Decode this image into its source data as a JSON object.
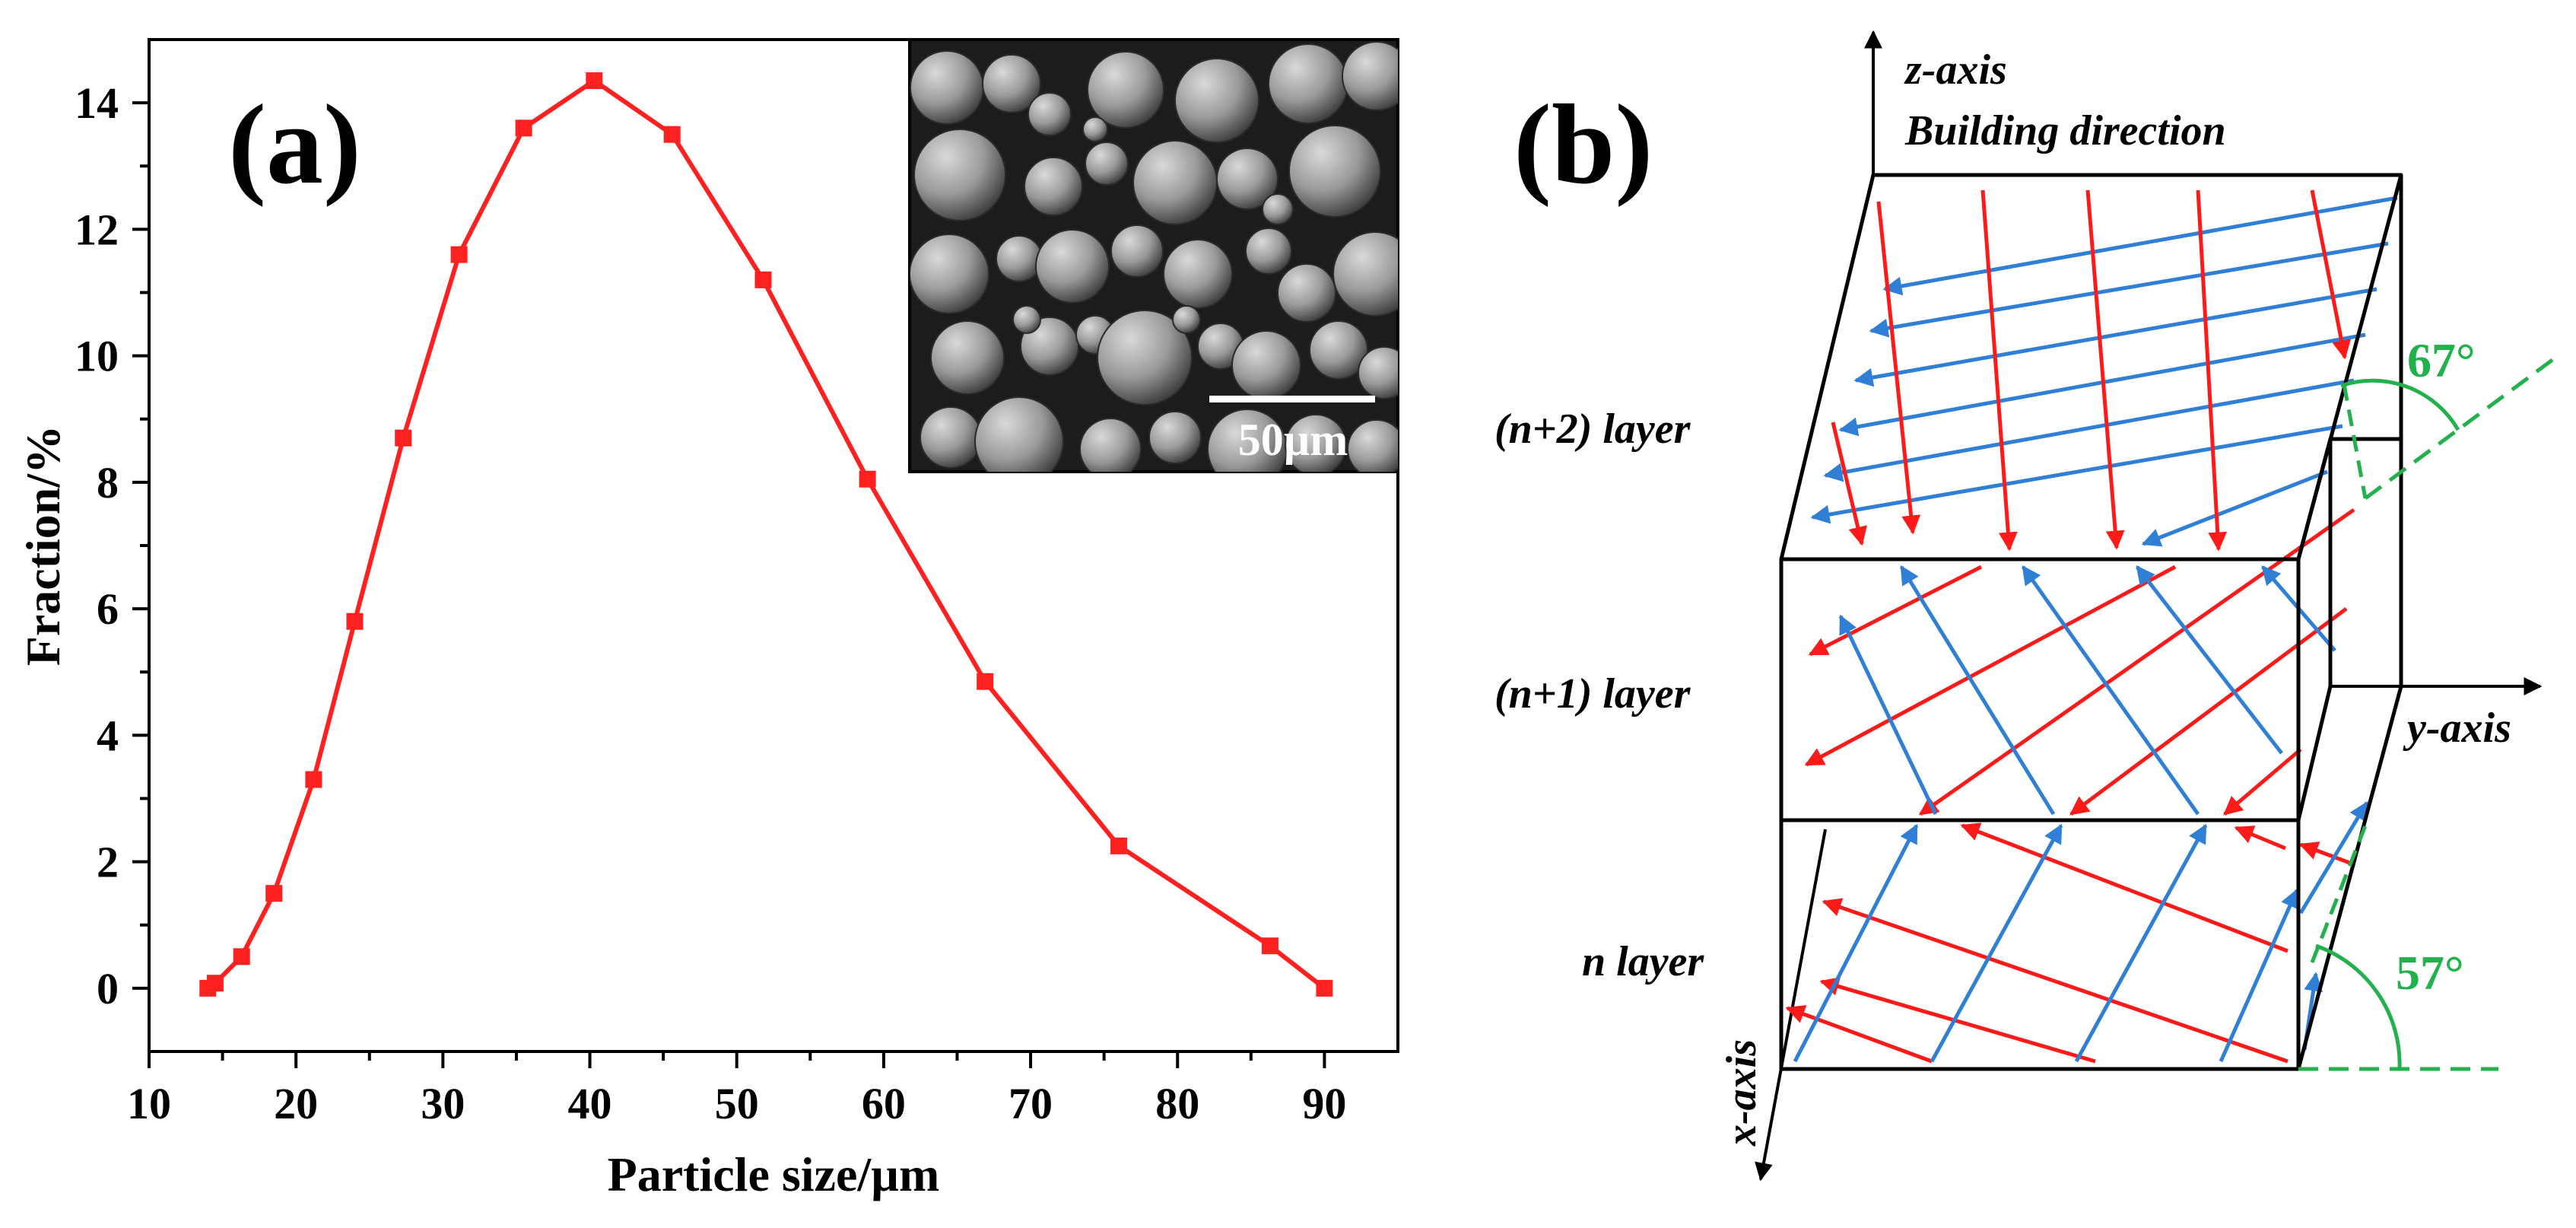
{
  "chart_data": [
    {
      "panel": "a",
      "type": "line",
      "panel_label": "(a)",
      "xlabel": "Particle size/µm",
      "ylabel": "Fraction/%",
      "xlim": [
        10,
        95
      ],
      "ylim": [
        -1,
        15
      ],
      "xticks": [
        10,
        20,
        30,
        40,
        50,
        60,
        70,
        80,
        90
      ],
      "yticks": [
        0,
        2,
        4,
        6,
        8,
        10,
        12,
        14
      ],
      "series": [
        {
          "color": "#ff2020",
          "marker": "square",
          "x": [
            14.0,
            14.5,
            16.3,
            18.5,
            21.2,
            24.0,
            27.3,
            31.1,
            35.5,
            40.3,
            45.6,
            51.8,
            58.9,
            66.9,
            76.0,
            86.3,
            90.0
          ],
          "y": [
            0.0,
            0.08,
            0.5,
            1.5,
            3.3,
            5.8,
            8.7,
            11.6,
            13.6,
            14.35,
            13.5,
            11.2,
            8.05,
            4.85,
            2.25,
            0.67,
            0.0
          ]
        }
      ],
      "inset": {
        "description_kind": "SEM micrograph of spherical powder particles",
        "scale_bar_label": "50µm"
      }
    },
    {
      "panel": "b",
      "type": "diagram",
      "panel_label": "(b)",
      "axes": {
        "z_label": "z-axis",
        "z_sublabel": "Building direction",
        "y_label": "y-axis",
        "x_label": "x-axis"
      },
      "layers": [
        "(n+2) layer",
        "(n+1) layer",
        "n layer"
      ],
      "angles": [
        "67°",
        "57°"
      ],
      "colors": {
        "red_scan": "#ff1a1a",
        "blue_scan": "#2f7fd6",
        "green_angle": "#22b14c"
      }
    }
  ]
}
